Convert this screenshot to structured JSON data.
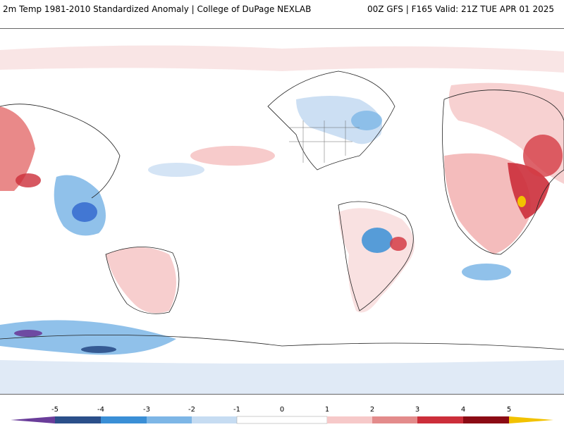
{
  "header": {
    "title": "2m Temp 1981-2010 Standardized Anomaly | College of DuPage NEXLAB",
    "run_info": "00Z GFS | F165 Valid: 21Z TUE APR 01 2025"
  },
  "colorbar": {
    "ticks": [
      "-5",
      "-4",
      "-3",
      "-2",
      "-1",
      "0",
      "1",
      "2",
      "3",
      "4",
      "5"
    ],
    "colors": [
      "#6a3d9a",
      "#2b4f8a",
      "#3a8fd6",
      "#7db6e6",
      "#c6dcf2",
      "#ffffff",
      "#ffffff",
      "#f6c9c9",
      "#e38b8b",
      "#cc2e3a",
      "#8b0a14",
      "#f2c200"
    ]
  },
  "map": {
    "description_colors": {
      "cold": "#5f9fe0",
      "cold_light": "#c9ddf3",
      "warm": "#d53c45",
      "warm_light": "#f7d0d0",
      "coast": "#222222"
    }
  }
}
